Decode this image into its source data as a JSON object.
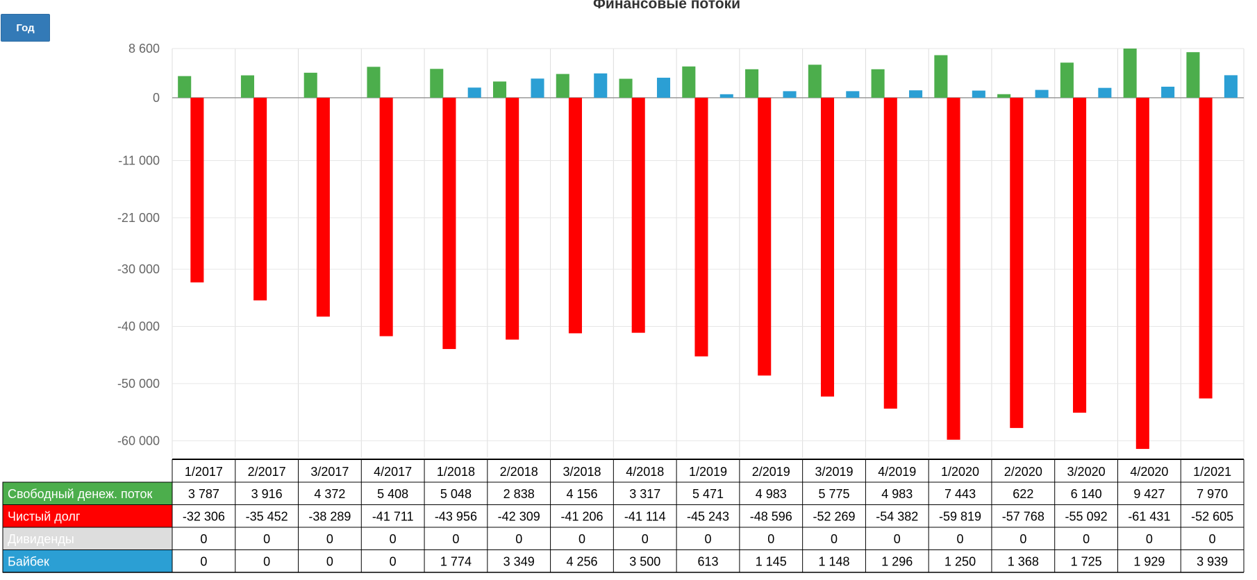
{
  "toolbar": {
    "period_button": "Год"
  },
  "chart_data": {
    "type": "bar",
    "title": "Финансовые потоки",
    "categories": [
      "1/2017",
      "2/2017",
      "3/2017",
      "4/2017",
      "1/2018",
      "2/2018",
      "3/2018",
      "4/2018",
      "1/2019",
      "2/2019",
      "3/2019",
      "4/2019",
      "1/2020",
      "2/2020",
      "3/2020",
      "4/2020",
      "1/2021"
    ],
    "y_ticks": [
      8600,
      0,
      -11000,
      -21000,
      -30000,
      -40000,
      -50000,
      -60000
    ],
    "y_tick_labels": [
      "8 600",
      "0",
      "-11 000",
      "-21 000",
      "-30 000",
      "-40 000",
      "-50 000",
      "-60 000"
    ],
    "ylim": [
      -63000,
      8600
    ],
    "grid": true,
    "legend": "table-below",
    "series": [
      {
        "name": "Свободный денеж. поток",
        "color": "#4cae4c",
        "draw": true,
        "values": [
          3787,
          3916,
          4372,
          5408,
          5048,
          2838,
          4156,
          3317,
          5471,
          4983,
          5775,
          4983,
          7443,
          622,
          6140,
          9427,
          7970
        ],
        "labels": [
          "3 787",
          "3 916",
          "4 372",
          "5 408",
          "5 048",
          "2 838",
          "4 156",
          "3 317",
          "5 471",
          "4 983",
          "5 775",
          "4 983",
          "7 443",
          "622",
          "6 140",
          "9 427",
          "7 970"
        ]
      },
      {
        "name": "Чистый долг",
        "color": "#ff0000",
        "draw": true,
        "values": [
          -32306,
          -35452,
          -38289,
          -41711,
          -43956,
          -42309,
          -41206,
          -41114,
          -45243,
          -48596,
          -52269,
          -54382,
          -59819,
          -57768,
          -55092,
          -61431,
          -52605
        ],
        "labels": [
          "-32 306",
          "-35 452",
          "-38 289",
          "-41 711",
          "-43 956",
          "-42 309",
          "-41 206",
          "-41 114",
          "-45 243",
          "-48 596",
          "-52 269",
          "-54 382",
          "-59 819",
          "-57 768",
          "-55 092",
          "-61 431",
          "-52 605"
        ]
      },
      {
        "name": "Дивиденды",
        "color": "#dddddd",
        "draw": false,
        "values": [
          0,
          0,
          0,
          0,
          0,
          0,
          0,
          0,
          0,
          0,
          0,
          0,
          0,
          0,
          0,
          0,
          0
        ],
        "labels": [
          "0",
          "0",
          "0",
          "0",
          "0",
          "0",
          "0",
          "0",
          "0",
          "0",
          "0",
          "0",
          "0",
          "0",
          "0",
          "0",
          "0"
        ]
      },
      {
        "name": "Байбек",
        "color": "#2b9fd4",
        "draw": true,
        "values": [
          0,
          0,
          0,
          0,
          1774,
          3349,
          4256,
          3500,
          613,
          1145,
          1148,
          1296,
          1250,
          1368,
          1725,
          1929,
          3939
        ],
        "labels": [
          "0",
          "0",
          "0",
          "0",
          "1 774",
          "3 349",
          "4 256",
          "3 500",
          "613",
          "1 145",
          "1 148",
          "1 296",
          "1 250",
          "1 368",
          "1 725",
          "1 929",
          "3 939"
        ]
      }
    ]
  }
}
